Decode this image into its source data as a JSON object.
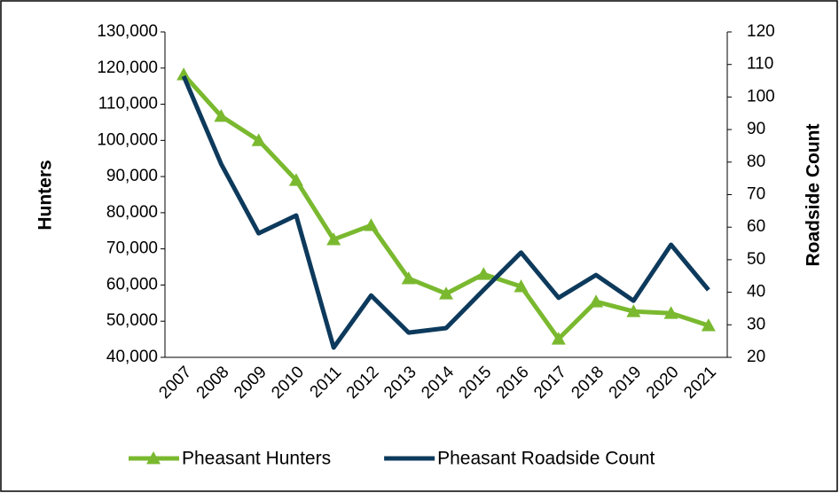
{
  "chart_data": {
    "type": "line",
    "categories": [
      "2007",
      "2008",
      "2009",
      "2010",
      "2011",
      "2012",
      "2013",
      "2014",
      "2015",
      "2016",
      "2017",
      "2018",
      "2019",
      "2020",
      "2021"
    ],
    "series": [
      {
        "name": "Pheasant Hunters",
        "color": "#7ab92f",
        "marker": "triangle",
        "axis": "y",
        "values": [
          118200,
          106700,
          100000,
          89000,
          72600,
          76500,
          61800,
          57600,
          63000,
          59600,
          45100,
          55400,
          52700,
          52200,
          48800
        ]
      },
      {
        "name": "Pheasant Roadside Count",
        "color": "#0d3a5c",
        "axis": "y2",
        "values": [
          106.4,
          79.4,
          58.1,
          63.6,
          23,
          39,
          27.6,
          29,
          40.7,
          52.2,
          38.3,
          45.3,
          37.4,
          54.6,
          40.7
        ]
      }
    ],
    "ylabel": "Hunters",
    "y2label": "Roadside Count",
    "ylim": [
      40000,
      130000
    ],
    "yticks": [
      {
        "value": 40000,
        "label": "40,000"
      },
      {
        "value": 50000,
        "label": "50,000"
      },
      {
        "value": 60000,
        "label": "60,000"
      },
      {
        "value": 70000,
        "label": "70,000"
      },
      {
        "value": 80000,
        "label": "80,000"
      },
      {
        "value": 90000,
        "label": "90,000"
      },
      {
        "value": 100000,
        "label": "100,000"
      },
      {
        "value": 110000,
        "label": "110,000"
      },
      {
        "value": 120000,
        "label": "120,000"
      },
      {
        "value": 130000,
        "label": "130,000"
      }
    ],
    "y2lim": [
      20,
      120
    ],
    "y2ticks": [
      20,
      30,
      40,
      50,
      60,
      70,
      80,
      90,
      100,
      110,
      120
    ],
    "grid": false,
    "legend": "bottom"
  }
}
